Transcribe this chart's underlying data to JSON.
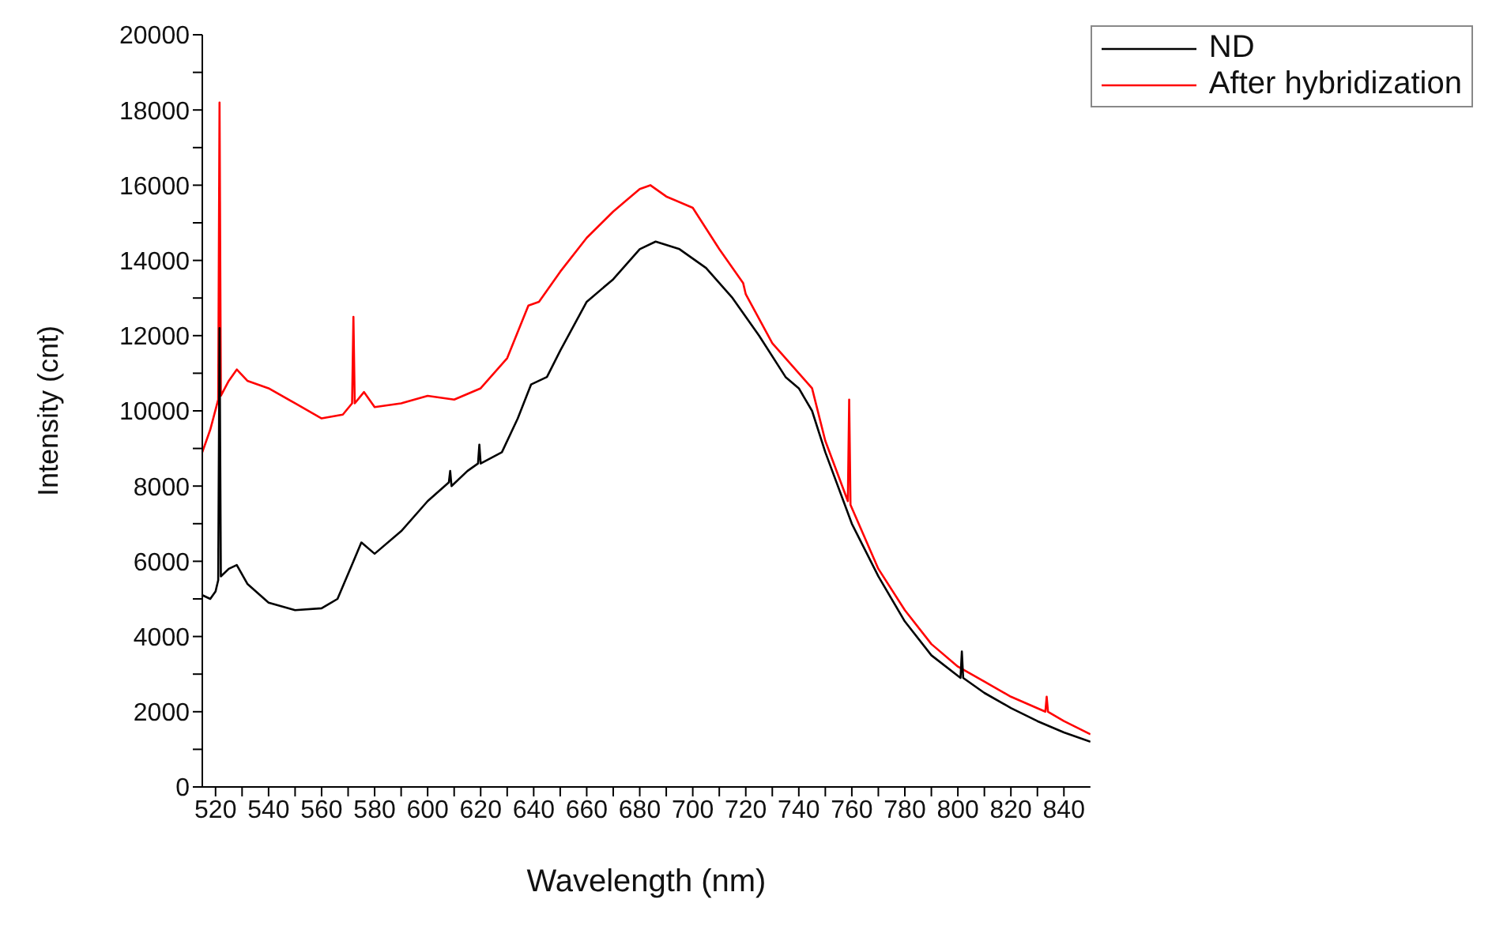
{
  "chart_data": {
    "type": "line",
    "xlabel": "Wavelength (nm)",
    "ylabel": "Intensity (cnt)",
    "xlim": [
      515,
      850
    ],
    "ylim": [
      0,
      20000
    ],
    "xticks": [
      520,
      {
        "value": 530,
        "label": null
      },
      540,
      {
        "value": 550,
        "label": null
      },
      560,
      {
        "value": 570,
        "label": null
      },
      580,
      {
        "value": 590,
        "label": null
      },
      600,
      {
        "value": 610,
        "label": null
      },
      620,
      {
        "value": 630,
        "label": null
      },
      640,
      {
        "value": 650,
        "label": null
      },
      660,
      {
        "value": 670,
        "label": null
      },
      680,
      {
        "value": 690,
        "label": null
      },
      700,
      {
        "value": 710,
        "label": null
      },
      720,
      {
        "value": 730,
        "label": null
      },
      740,
      {
        "value": 750,
        "label": null
      },
      760,
      {
        "value": 770,
        "label": null
      },
      780,
      {
        "value": 790,
        "label": null
      },
      800,
      {
        "value": 810,
        "label": null
      },
      820,
      {
        "value": 830,
        "label": null
      },
      840
    ],
    "yticks": [
      0,
      {
        "value": 1000,
        "label": null
      },
      2000,
      {
        "value": 3000,
        "label": null
      },
      4000,
      {
        "value": 5000,
        "label": null
      },
      6000,
      {
        "value": 7000,
        "label": null
      },
      8000,
      {
        "value": 9000,
        "label": null
      },
      10000,
      {
        "value": 11000,
        "label": null
      },
      12000,
      {
        "value": 13000,
        "label": null
      },
      14000,
      {
        "value": 15000,
        "label": null
      },
      16000,
      {
        "value": 17000,
        "label": null
      },
      18000,
      {
        "value": 19000,
        "label": null
      },
      20000
    ],
    "grid": false,
    "legend": "top right",
    "marker": "none",
    "line_style": "solid",
    "series": [
      {
        "name": "ND",
        "color": "#000000",
        "x": [
          515,
          518,
          520,
          521,
          521.5,
          522,
          525,
          528,
          532,
          540,
          550,
          560,
          566,
          572,
          575,
          580,
          590,
          600,
          608,
          608.5,
          609,
          615,
          619,
          619.5,
          620,
          628,
          634,
          639,
          645,
          650,
          660,
          670,
          680,
          686,
          695,
          705,
          715,
          725,
          735,
          740,
          745,
          750,
          760,
          770,
          780,
          790,
          801,
          801.5,
          802,
          810,
          820,
          830,
          840,
          850
        ],
        "values": [
          5100,
          5000,
          5200,
          5500,
          12200,
          5600,
          5800,
          5900,
          5400,
          4900,
          4700,
          4750,
          5000,
          6000,
          6500,
          6200,
          6800,
          7600,
          8100,
          8400,
          8000,
          8400,
          8600,
          9100,
          8600,
          8900,
          9800,
          10700,
          10900,
          11600,
          12900,
          13500,
          14300,
          14500,
          14300,
          13800,
          13000,
          12000,
          10900,
          10600,
          10000,
          8900,
          7000,
          5600,
          4400,
          3500,
          2900,
          3600,
          2900,
          2500,
          2100,
          1750,
          1450,
          1200
        ]
      },
      {
        "name": "After hybridization",
        "color": "#ff0000",
        "x": [
          515,
          518,
          521,
          521.5,
          522,
          525,
          528,
          532,
          540,
          550,
          560,
          568,
          571.5,
          572,
          572.5,
          576,
          580,
          590,
          600,
          610,
          620,
          630,
          638,
          642,
          650,
          660,
          670,
          680,
          684,
          690,
          700,
          710,
          719,
          720,
          730,
          740,
          745,
          750,
          758.5,
          759,
          759.5,
          770,
          780,
          790,
          800,
          810,
          820,
          833,
          833.5,
          834,
          840,
          850
        ],
        "values": [
          8900,
          9500,
          10300,
          18200,
          10400,
          10800,
          11100,
          10800,
          10600,
          10200,
          9800,
          9900,
          10200,
          12500,
          10200,
          10500,
          10100,
          10200,
          10400,
          10300,
          10600,
          11400,
          12800,
          12900,
          13700,
          14600,
          15300,
          15900,
          16000,
          15700,
          15400,
          14300,
          13400,
          13100,
          11800,
          11000,
          10600,
          9200,
          7600,
          10300,
          7500,
          5800,
          4700,
          3800,
          3200,
          2800,
          2400,
          2000,
          2400,
          2000,
          1750,
          1400
        ]
      }
    ]
  }
}
